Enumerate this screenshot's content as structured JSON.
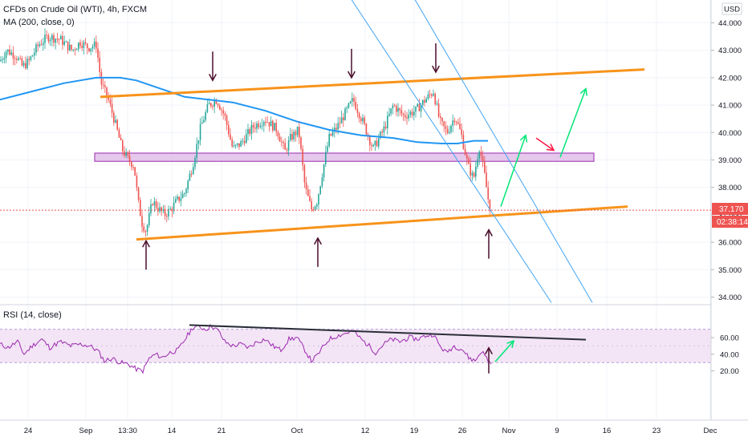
{
  "header": {
    "title": "CFDs on Crude Oil (WTI), 4h, FXCM",
    "ma_label": "MA (200, close, 0)",
    "currency": "USD",
    "rsi_label": "RSI (14, close)"
  },
  "price_readout": {
    "last_price": "37.170",
    "countdown": "02:38:14"
  },
  "colors": {
    "up": "#26a69a",
    "down": "#ef5350",
    "ma": "#2196f3",
    "trendline": "#f7931a",
    "channel": "#42a5f5",
    "zone_fill": "#e1bee7",
    "zone_stroke": "#9c27b0",
    "rsi_line": "#9c27b0",
    "rsi_band": "#f3e5f5",
    "signal_green": "#00e676",
    "signal_red": "#ff1744",
    "arrow_dark": "#4a0e2c"
  },
  "chart_data": [
    {
      "type": "candlestick",
      "title": "CFDs on Crude Oil (WTI), 4h, FXCM",
      "yticks": [
        44.0,
        43.0,
        42.0,
        41.0,
        40.0,
        39.0,
        38.0,
        37.0,
        36.0,
        35.0,
        34.0
      ],
      "ylim": [
        33.8,
        44.6
      ],
      "xticks": [
        "24",
        "Sep",
        "13:30",
        "14",
        "21",
        "Oct",
        "12",
        "19",
        "26",
        "Nov",
        "9",
        "16",
        "23",
        "Dec"
      ],
      "last_price": 37.17,
      "price_path": [
        [
          0,
          42.6
        ],
        [
          8,
          43.0
        ],
        [
          20,
          42.8
        ],
        [
          28,
          42.4
        ],
        [
          36,
          42.6
        ],
        [
          48,
          43.2
        ],
        [
          60,
          43.5
        ],
        [
          75,
          43.4
        ],
        [
          90,
          43.0
        ],
        [
          100,
          43.3
        ],
        [
          110,
          43.1
        ],
        [
          120,
          43.2
        ],
        [
          126,
          41.8
        ],
        [
          135,
          41.2
        ],
        [
          143,
          40.4
        ],
        [
          152,
          39.4
        ],
        [
          160,
          39.0
        ],
        [
          167,
          38.8
        ],
        [
          172,
          37.5
        ],
        [
          177,
          36.7
        ],
        [
          182,
          36.4
        ],
        [
          190,
          37.5
        ],
        [
          198,
          37.2
        ],
        [
          205,
          37.0
        ],
        [
          213,
          37.2
        ],
        [
          220,
          37.5
        ],
        [
          230,
          37.8
        ],
        [
          240,
          38.8
        ],
        [
          250,
          40.2
        ],
        [
          260,
          41.0
        ],
        [
          270,
          41.2
        ],
        [
          280,
          40.6
        ],
        [
          290,
          39.4
        ],
        [
          300,
          39.6
        ],
        [
          315,
          40.2
        ],
        [
          330,
          40.5
        ],
        [
          345,
          40.1
        ],
        [
          355,
          39.3
        ],
        [
          362,
          39.8
        ],
        [
          372,
          40.1
        ],
        [
          380,
          38.0
        ],
        [
          388,
          37.2
        ],
        [
          395,
          37.5
        ],
        [
          402,
          38.6
        ],
        [
          410,
          39.8
        ],
        [
          420,
          40.2
        ],
        [
          430,
          40.7
        ],
        [
          440,
          41.2
        ],
        [
          452,
          40.4
        ],
        [
          465,
          39.4
        ],
        [
          478,
          40.1
        ],
        [
          490,
          41.0
        ],
        [
          503,
          40.6
        ],
        [
          518,
          40.8
        ],
        [
          530,
          41.2
        ],
        [
          540,
          41.5
        ],
        [
          548,
          40.4
        ],
        [
          557,
          40.0
        ],
        [
          567,
          40.6
        ],
        [
          575,
          39.9
        ],
        [
          583,
          38.8
        ],
        [
          590,
          38.3
        ],
        [
          597,
          39.5
        ],
        [
          603,
          38.6
        ],
        [
          608,
          37.6
        ],
        [
          612,
          37.17
        ]
      ],
      "ma200_path": [
        [
          0,
          41.2
        ],
        [
          40,
          41.5
        ],
        [
          80,
          41.8
        ],
        [
          120,
          42.0
        ],
        [
          150,
          42.0
        ],
        [
          170,
          41.9
        ],
        [
          200,
          41.6
        ],
        [
          230,
          41.3
        ],
        [
          260,
          41.2
        ],
        [
          290,
          41.1
        ],
        [
          330,
          40.8
        ],
        [
          370,
          40.4
        ],
        [
          410,
          40.1
        ],
        [
          450,
          39.9
        ],
        [
          490,
          39.8
        ],
        [
          520,
          39.65
        ],
        [
          550,
          39.6
        ],
        [
          570,
          39.6
        ],
        [
          590,
          39.7
        ],
        [
          608,
          39.7
        ]
      ],
      "annotations": {
        "upper_trendline": [
          [
            125,
            41.3
          ],
          [
            803,
            42.3
          ]
        ],
        "lower_trendline": [
          [
            170,
            36.1
          ],
          [
            782,
            37.3
          ]
        ],
        "resistance_zone": {
          "x": [
            118,
            740
          ],
          "y": [
            38.95,
            39.25
          ]
        },
        "channel_line_1": [
          [
            430,
            45.2
          ],
          [
            687,
            33.8
          ]
        ],
        "channel_line_2": [
          [
            510,
            45.2
          ],
          [
            738,
            33.8
          ]
        ],
        "green_arrows": [
          [
            [
              624,
              37.3
            ],
            [
              655,
              39.9
            ]
          ],
          [
            [
              698,
              39.1
            ],
            [
              730,
              41.6
            ]
          ]
        ],
        "red_arrow": [
          [
            668,
            39.8
          ],
          [
            690,
            39.35
          ]
        ],
        "down_arrows": [
          [
            265,
            41.9
          ],
          [
            438,
            42.0
          ],
          [
            543,
            42.2
          ]
        ],
        "up_arrows": [
          [
            182,
            35.0
          ],
          [
            396,
            35.1
          ],
          [
            609,
            35.4
          ]
        ]
      }
    },
    {
      "type": "line",
      "title": "RSI (14, close)",
      "yticks": [
        60.0,
        40.0,
        20.0
      ],
      "ylim": [
        12,
        78
      ],
      "band": [
        30,
        70
      ],
      "rsi_path": [
        [
          0,
          52
        ],
        [
          10,
          48
        ],
        [
          22,
          55
        ],
        [
          30,
          40
        ],
        [
          40,
          50
        ],
        [
          52,
          58
        ],
        [
          62,
          48
        ],
        [
          75,
          55
        ],
        [
          88,
          50
        ],
        [
          100,
          52
        ],
        [
          112,
          50
        ],
        [
          122,
          44
        ],
        [
          130,
          32
        ],
        [
          140,
          35
        ],
        [
          150,
          30
        ],
        [
          160,
          28
        ],
        [
          170,
          22
        ],
        [
          178,
          20
        ],
        [
          186,
          35
        ],
        [
          194,
          40
        ],
        [
          202,
          36
        ],
        [
          212,
          42
        ],
        [
          222,
          45
        ],
        [
          232,
          60
        ],
        [
          240,
          72
        ],
        [
          248,
          73
        ],
        [
          256,
          70
        ],
        [
          264,
          74
        ],
        [
          272,
          68
        ],
        [
          280,
          55
        ],
        [
          290,
          50
        ],
        [
          300,
          52
        ],
        [
          310,
          48
        ],
        [
          320,
          55
        ],
        [
          330,
          58
        ],
        [
          340,
          50
        ],
        [
          350,
          45
        ],
        [
          360,
          58
        ],
        [
          370,
          60
        ],
        [
          380,
          45
        ],
        [
          388,
          32
        ],
        [
          395,
          38
        ],
        [
          402,
          48
        ],
        [
          410,
          58
        ],
        [
          420,
          62
        ],
        [
          430,
          65
        ],
        [
          440,
          68
        ],
        [
          450,
          58
        ],
        [
          460,
          50
        ],
        [
          468,
          42
        ],
        [
          478,
          52
        ],
        [
          488,
          58
        ],
        [
          498,
          55
        ],
        [
          510,
          60
        ],
        [
          520,
          58
        ],
        [
          530,
          62
        ],
        [
          540,
          64
        ],
        [
          548,
          50
        ],
        [
          556,
          42
        ],
        [
          566,
          50
        ],
        [
          576,
          46
        ],
        [
          584,
          36
        ],
        [
          592,
          32
        ],
        [
          600,
          44
        ],
        [
          606,
          36
        ],
        [
          612,
          28
        ]
      ],
      "annotations": {
        "trendline": [
          [
            236,
            75
          ],
          [
            730,
            57.5
          ]
        ],
        "green_arrow": [
          [
            617,
            31
          ],
          [
            640,
            56
          ]
        ],
        "up_arrow": [
          [
            609,
            17
          ]
        ]
      }
    }
  ]
}
